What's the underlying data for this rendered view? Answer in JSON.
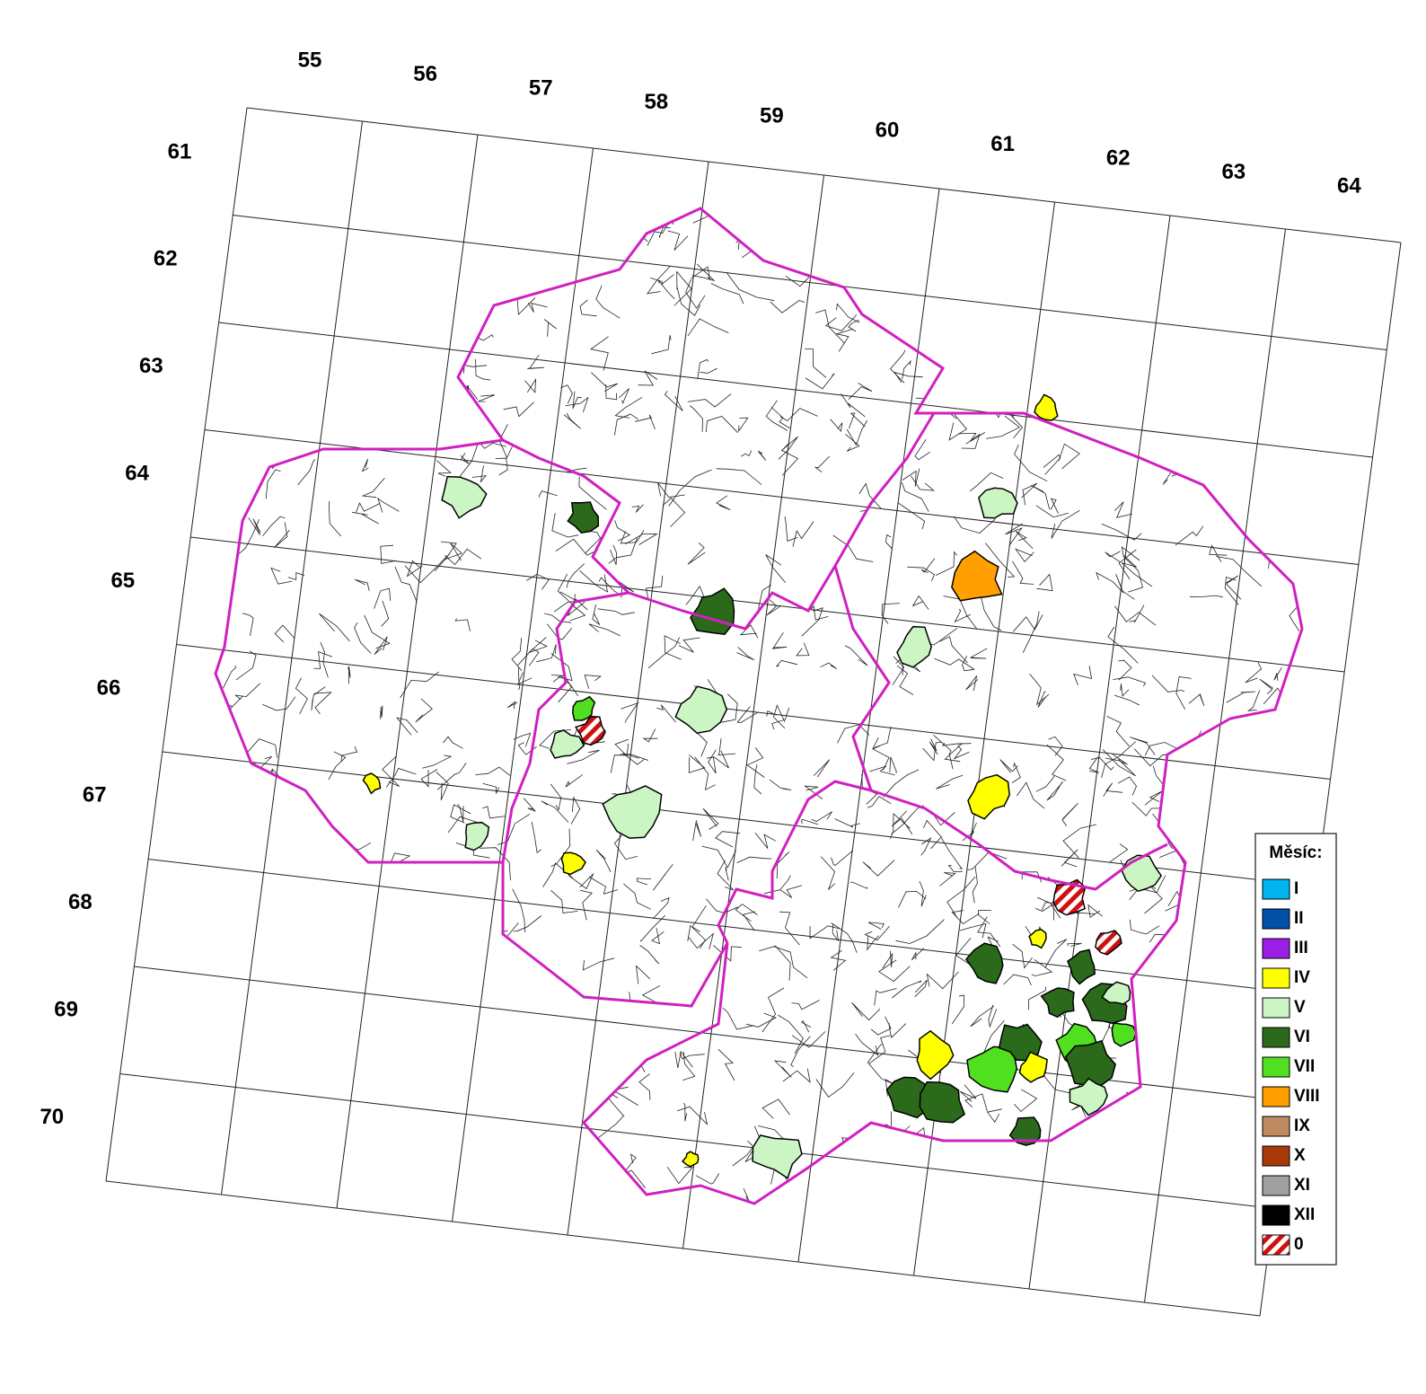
{
  "grid": {
    "columns": [
      55,
      56,
      57,
      58,
      59,
      60,
      61,
      62,
      63,
      64
    ],
    "rows": [
      61,
      62,
      63,
      64,
      65,
      66,
      67,
      68,
      69,
      70
    ]
  },
  "legend": {
    "title": "Měsíc:",
    "items": [
      {
        "label": "I",
        "color": "#00b4f0"
      },
      {
        "label": "II",
        "color": "#0050a8"
      },
      {
        "label": "III",
        "color": "#9b1ee6"
      },
      {
        "label": "IV",
        "color": "#ffff00"
      },
      {
        "label": "V",
        "color": "#ccf5c4"
      },
      {
        "label": "VI",
        "color": "#2a6a1a"
      },
      {
        "label": "VII",
        "color": "#50e020"
      },
      {
        "label": "VIII",
        "color": "#ffa000"
      },
      {
        "label": "IX",
        "color": "#c08a60"
      },
      {
        "label": "X",
        "color": "#a83a0a"
      },
      {
        "label": "XI",
        "color": "#a0a0a0"
      },
      {
        "label": "XII",
        "color": "#000000"
      },
      {
        "label": "0",
        "color": "#d01010",
        "pattern": "hatch"
      }
    ]
  }
}
